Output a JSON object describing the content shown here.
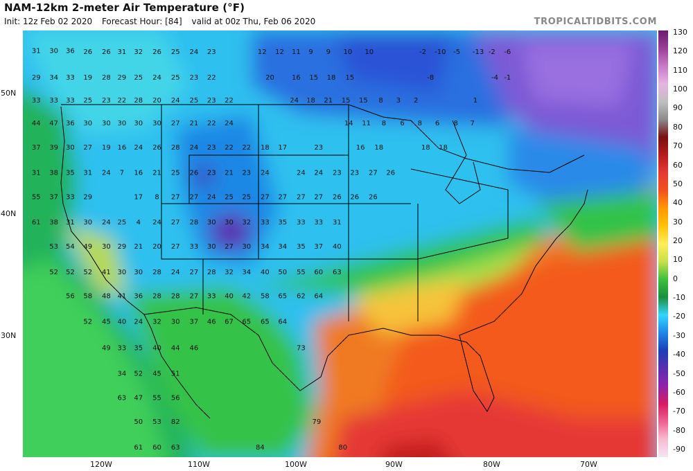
{
  "header": {
    "title": "NAM-12km 2-meter Air Temperature (°F)",
    "init": "Init: 12z Feb 02 2020",
    "forecast": "Forecast Hour: [84]",
    "valid": "valid at 00z Thu, Feb 06 2020",
    "brand": "TROPICALTIDBITS.COM"
  },
  "axes": {
    "lat_labels": [
      "50N",
      "40N",
      "30N"
    ],
    "lon_labels": [
      "120W",
      "110W",
      "100W",
      "90W",
      "80W",
      "70W"
    ]
  },
  "colorbar": {
    "ticks": [
      "130",
      "120",
      "110",
      "100",
      "90",
      "80",
      "70",
      "60",
      "50",
      "40",
      "30",
      "20",
      "10",
      "0",
      "-10",
      "-20",
      "-30",
      "-40",
      "-50",
      "-60",
      "-70",
      "-80",
      "-90"
    ],
    "colors": [
      "#6a1b6e",
      "#9b3f9a",
      "#c77ac6",
      "#e6b3e2",
      "#bfbfbf",
      "#8c8c8c",
      "#7a1010",
      "#b71c1c",
      "#e53935",
      "#f4511e",
      "#ff9800",
      "#ffc107",
      "#ffee58",
      "#c6e04a",
      "#3fbf3f",
      "#1b8f3a",
      "#33d6ff",
      "#1e88e5",
      "#1a3fb5",
      "#5c2db0",
      "#8e24aa",
      "#d81b60",
      "#f06292",
      "#f8bbd0",
      "#f3e5f5"
    ]
  },
  "points": [
    {
      "v": "31",
      "lon": -126.6,
      "lat": 53.7
    },
    {
      "v": "30",
      "lon": -124.8,
      "lat": 53.7
    },
    {
      "v": "36",
      "lon": -123.1,
      "lat": 53.7
    },
    {
      "v": "26",
      "lon": -121.3,
      "lat": 53.6
    },
    {
      "v": "26",
      "lon": -119.4,
      "lat": 53.6
    },
    {
      "v": "31",
      "lon": -117.8,
      "lat": 53.6
    },
    {
      "v": "32",
      "lon": -116.1,
      "lat": 53.6
    },
    {
      "v": "26",
      "lon": -114.2,
      "lat": 53.6
    },
    {
      "v": "25",
      "lon": -112.3,
      "lat": 53.6
    },
    {
      "v": "24",
      "lon": -110.4,
      "lat": 53.6
    },
    {
      "v": "23",
      "lon": -108.6,
      "lat": 53.6
    },
    {
      "v": "12",
      "lon": -103.4,
      "lat": 53.6
    },
    {
      "v": "12",
      "lon": -101.6,
      "lat": 53.6
    },
    {
      "v": "11",
      "lon": -99.9,
      "lat": 53.6
    },
    {
      "v": "9",
      "lon": -98.4,
      "lat": 53.6
    },
    {
      "v": "9",
      "lon": -96.6,
      "lat": 53.6
    },
    {
      "v": "10",
      "lon": -94.6,
      "lat": 53.6
    },
    {
      "v": "10",
      "lon": -92.4,
      "lat": 53.6
    },
    {
      "v": "-2",
      "lon": -86.9,
      "lat": 53.6
    },
    {
      "v": "-10",
      "lon": -85.1,
      "lat": 53.6
    },
    {
      "v": "-5",
      "lon": -83.4,
      "lat": 53.6
    },
    {
      "v": "-13",
      "lon": -81.2,
      "lat": 53.6
    },
    {
      "v": "-2",
      "lon": -79.8,
      "lat": 53.6
    },
    {
      "v": "-6",
      "lon": -78.2,
      "lat": 53.6
    },
    {
      "v": "29",
      "lon": -126.6,
      "lat": 51.5
    },
    {
      "v": "34",
      "lon": -124.8,
      "lat": 51.5
    },
    {
      "v": "33",
      "lon": -123.1,
      "lat": 51.5
    },
    {
      "v": "19",
      "lon": -121.3,
      "lat": 51.5
    },
    {
      "v": "28",
      "lon": -119.4,
      "lat": 51.5
    },
    {
      "v": "29",
      "lon": -117.8,
      "lat": 51.5
    },
    {
      "v": "25",
      "lon": -116.1,
      "lat": 51.5
    },
    {
      "v": "24",
      "lon": -114.2,
      "lat": 51.5
    },
    {
      "v": "25",
      "lon": -112.3,
      "lat": 51.5
    },
    {
      "v": "23",
      "lon": -110.4,
      "lat": 51.5
    },
    {
      "v": "22",
      "lon": -108.6,
      "lat": 51.5
    },
    {
      "v": "20",
      "lon": -102.6,
      "lat": 51.5
    },
    {
      "v": "16",
      "lon": -99.9,
      "lat": 51.5
    },
    {
      "v": "15",
      "lon": -98.1,
      "lat": 51.5
    },
    {
      "v": "18",
      "lon": -96.3,
      "lat": 51.5
    },
    {
      "v": "15",
      "lon": -94.4,
      "lat": 51.5
    },
    {
      "v": "-8",
      "lon": -86.1,
      "lat": 51.5
    },
    {
      "v": "-1",
      "lon": -78.2,
      "lat": 51.5
    },
    {
      "v": "-4",
      "lon": -79.5,
      "lat": 51.5
    },
    {
      "v": "33",
      "lon": -126.6,
      "lat": 49.6
    },
    {
      "v": "33",
      "lon": -124.8,
      "lat": 49.6
    },
    {
      "v": "33",
      "lon": -123.1,
      "lat": 49.6
    },
    {
      "v": "25",
      "lon": -121.3,
      "lat": 49.6
    },
    {
      "v": "23",
      "lon": -119.4,
      "lat": 49.6
    },
    {
      "v": "22",
      "lon": -117.8,
      "lat": 49.6
    },
    {
      "v": "28",
      "lon": -116.1,
      "lat": 49.6
    },
    {
      "v": "20",
      "lon": -114.2,
      "lat": 49.6
    },
    {
      "v": "24",
      "lon": -112.3,
      "lat": 49.6
    },
    {
      "v": "25",
      "lon": -110.4,
      "lat": 49.6
    },
    {
      "v": "23",
      "lon": -108.6,
      "lat": 49.6
    },
    {
      "v": "22",
      "lon": -106.8,
      "lat": 49.6
    },
    {
      "v": "24",
      "lon": -100.1,
      "lat": 49.6
    },
    {
      "v": "18",
      "lon": -98.4,
      "lat": 49.6
    },
    {
      "v": "21",
      "lon": -96.6,
      "lat": 49.6
    },
    {
      "v": "15",
      "lon": -94.8,
      "lat": 49.6
    },
    {
      "v": "15",
      "lon": -93.0,
      "lat": 49.6
    },
    {
      "v": "8",
      "lon": -91.2,
      "lat": 49.6
    },
    {
      "v": "3",
      "lon": -89.4,
      "lat": 49.6
    },
    {
      "v": "2",
      "lon": -87.6,
      "lat": 49.6
    },
    {
      "v": "1",
      "lon": -81.5,
      "lat": 49.6
    },
    {
      "v": "44",
      "lon": -126.6,
      "lat": 47.7
    },
    {
      "v": "47",
      "lon": -124.8,
      "lat": 47.7
    },
    {
      "v": "36",
      "lon": -123.1,
      "lat": 47.7
    },
    {
      "v": "30",
      "lon": -121.3,
      "lat": 47.7
    },
    {
      "v": "30",
      "lon": -119.4,
      "lat": 47.7
    },
    {
      "v": "30",
      "lon": -117.8,
      "lat": 47.7
    },
    {
      "v": "30",
      "lon": -116.1,
      "lat": 47.7
    },
    {
      "v": "30",
      "lon": -114.2,
      "lat": 47.7
    },
    {
      "v": "27",
      "lon": -112.3,
      "lat": 47.7
    },
    {
      "v": "21",
      "lon": -110.4,
      "lat": 47.7
    },
    {
      "v": "22",
      "lon": -108.6,
      "lat": 47.7
    },
    {
      "v": "24",
      "lon": -106.8,
      "lat": 47.7
    },
    {
      "v": "14",
      "lon": -94.5,
      "lat": 47.7
    },
    {
      "v": "11",
      "lon": -92.7,
      "lat": 47.7
    },
    {
      "v": "8",
      "lon": -90.9,
      "lat": 47.7
    },
    {
      "v": "6",
      "lon": -89.0,
      "lat": 47.7
    },
    {
      "v": "8",
      "lon": -87.2,
      "lat": 47.7
    },
    {
      "v": "6",
      "lon": -85.4,
      "lat": 47.7
    },
    {
      "v": "8",
      "lon": -83.5,
      "lat": 47.7
    },
    {
      "v": "7",
      "lon": -81.8,
      "lat": 47.7
    },
    {
      "v": "37",
      "lon": -126.6,
      "lat": 45.7
    },
    {
      "v": "39",
      "lon": -124.8,
      "lat": 45.7
    },
    {
      "v": "30",
      "lon": -123.1,
      "lat": 45.7
    },
    {
      "v": "27",
      "lon": -121.3,
      "lat": 45.7
    },
    {
      "v": "19",
      "lon": -119.4,
      "lat": 45.7
    },
    {
      "v": "16",
      "lon": -117.8,
      "lat": 45.7
    },
    {
      "v": "24",
      "lon": -116.1,
      "lat": 45.7
    },
    {
      "v": "26",
      "lon": -114.2,
      "lat": 45.7
    },
    {
      "v": "28",
      "lon": -112.3,
      "lat": 45.7
    },
    {
      "v": "24",
      "lon": -110.4,
      "lat": 45.7
    },
    {
      "v": "23",
      "lon": -108.6,
      "lat": 45.7
    },
    {
      "v": "22",
      "lon": -106.8,
      "lat": 45.7
    },
    {
      "v": "22",
      "lon": -105.0,
      "lat": 45.7
    },
    {
      "v": "18",
      "lon": -103.1,
      "lat": 45.7
    },
    {
      "v": "17",
      "lon": -101.3,
      "lat": 45.7
    },
    {
      "v": "23",
      "lon": -97.6,
      "lat": 45.7
    },
    {
      "v": "16",
      "lon": -93.3,
      "lat": 45.7
    },
    {
      "v": "18",
      "lon": -91.4,
      "lat": 45.7
    },
    {
      "v": "18",
      "lon": -86.6,
      "lat": 45.7
    },
    {
      "v": "18",
      "lon": -84.8,
      "lat": 45.7
    },
    {
      "v": "31",
      "lon": -126.6,
      "lat": 43.6
    },
    {
      "v": "38",
      "lon": -124.8,
      "lat": 43.6
    },
    {
      "v": "35",
      "lon": -123.1,
      "lat": 43.6
    },
    {
      "v": "31",
      "lon": -121.3,
      "lat": 43.6
    },
    {
      "v": "24",
      "lon": -119.4,
      "lat": 43.6
    },
    {
      "v": "7",
      "lon": -117.8,
      "lat": 43.6
    },
    {
      "v": "16",
      "lon": -116.1,
      "lat": 43.6
    },
    {
      "v": "21",
      "lon": -114.2,
      "lat": 43.6
    },
    {
      "v": "25",
      "lon": -112.3,
      "lat": 43.6
    },
    {
      "v": "26",
      "lon": -110.4,
      "lat": 43.6
    },
    {
      "v": "23",
      "lon": -108.6,
      "lat": 43.6
    },
    {
      "v": "21",
      "lon": -106.8,
      "lat": 43.6
    },
    {
      "v": "23",
      "lon": -105.0,
      "lat": 43.6
    },
    {
      "v": "24",
      "lon": -103.1,
      "lat": 43.6
    },
    {
      "v": "24",
      "lon": -99.4,
      "lat": 43.6
    },
    {
      "v": "24",
      "lon": -97.6,
      "lat": 43.6
    },
    {
      "v": "23",
      "lon": -95.7,
      "lat": 43.6
    },
    {
      "v": "23",
      "lon": -93.9,
      "lat": 43.6
    },
    {
      "v": "27",
      "lon": -92.0,
      "lat": 43.6
    },
    {
      "v": "26",
      "lon": -90.2,
      "lat": 43.6
    },
    {
      "v": "55",
      "lon": -126.6,
      "lat": 41.6
    },
    {
      "v": "37",
      "lon": -124.8,
      "lat": 41.6
    },
    {
      "v": "33",
      "lon": -123.1,
      "lat": 41.6
    },
    {
      "v": "29",
      "lon": -121.3,
      "lat": 41.6
    },
    {
      "v": "17",
      "lon": -116.1,
      "lat": 41.6
    },
    {
      "v": "8",
      "lon": -114.2,
      "lat": 41.6
    },
    {
      "v": "27",
      "lon": -112.3,
      "lat": 41.6
    },
    {
      "v": "27",
      "lon": -110.4,
      "lat": 41.6
    },
    {
      "v": "24",
      "lon": -108.6,
      "lat": 41.6
    },
    {
      "v": "25",
      "lon": -106.8,
      "lat": 41.6
    },
    {
      "v": "25",
      "lon": -105.0,
      "lat": 41.6
    },
    {
      "v": "27",
      "lon": -103.1,
      "lat": 41.6
    },
    {
      "v": "27",
      "lon": -101.3,
      "lat": 41.6
    },
    {
      "v": "27",
      "lon": -99.4,
      "lat": 41.6
    },
    {
      "v": "27",
      "lon": -97.6,
      "lat": 41.6
    },
    {
      "v": "26",
      "lon": -95.7,
      "lat": 41.6
    },
    {
      "v": "26",
      "lon": -93.9,
      "lat": 41.6
    },
    {
      "v": "26",
      "lon": -92.0,
      "lat": 41.6
    },
    {
      "v": "61",
      "lon": -126.6,
      "lat": 39.5
    },
    {
      "v": "38",
      "lon": -124.8,
      "lat": 39.5
    },
    {
      "v": "31",
      "lon": -123.1,
      "lat": 39.5
    },
    {
      "v": "30",
      "lon": -121.3,
      "lat": 39.5
    },
    {
      "v": "24",
      "lon": -119.4,
      "lat": 39.5
    },
    {
      "v": "25",
      "lon": -117.8,
      "lat": 39.5
    },
    {
      "v": "4",
      "lon": -116.1,
      "lat": 39.5
    },
    {
      "v": "24",
      "lon": -114.2,
      "lat": 39.5
    },
    {
      "v": "27",
      "lon": -112.3,
      "lat": 39.5
    },
    {
      "v": "28",
      "lon": -110.4,
      "lat": 39.5
    },
    {
      "v": "30",
      "lon": -108.6,
      "lat": 39.5
    },
    {
      "v": "30",
      "lon": -106.8,
      "lat": 39.5
    },
    {
      "v": "32",
      "lon": -105.0,
      "lat": 39.5
    },
    {
      "v": "33",
      "lon": -103.1,
      "lat": 39.5
    },
    {
      "v": "35",
      "lon": -101.3,
      "lat": 39.5
    },
    {
      "v": "33",
      "lon": -99.4,
      "lat": 39.5
    },
    {
      "v": "33",
      "lon": -97.6,
      "lat": 39.5
    },
    {
      "v": "31",
      "lon": -95.7,
      "lat": 39.5
    },
    {
      "v": "53",
      "lon": -124.8,
      "lat": 37.5
    },
    {
      "v": "54",
      "lon": -123.1,
      "lat": 37.5
    },
    {
      "v": "49",
      "lon": -121.3,
      "lat": 37.5
    },
    {
      "v": "30",
      "lon": -119.4,
      "lat": 37.5
    },
    {
      "v": "29",
      "lon": -117.8,
      "lat": 37.5
    },
    {
      "v": "21",
      "lon": -116.1,
      "lat": 37.5
    },
    {
      "v": "20",
      "lon": -114.2,
      "lat": 37.5
    },
    {
      "v": "27",
      "lon": -112.3,
      "lat": 37.5
    },
    {
      "v": "33",
      "lon": -110.4,
      "lat": 37.5
    },
    {
      "v": "30",
      "lon": -108.6,
      "lat": 37.5
    },
    {
      "v": "27",
      "lon": -106.8,
      "lat": 37.5
    },
    {
      "v": "30",
      "lon": -105.0,
      "lat": 37.5
    },
    {
      "v": "34",
      "lon": -103.1,
      "lat": 37.5
    },
    {
      "v": "34",
      "lon": -101.3,
      "lat": 37.5
    },
    {
      "v": "35",
      "lon": -99.4,
      "lat": 37.5
    },
    {
      "v": "37",
      "lon": -97.6,
      "lat": 37.5
    },
    {
      "v": "40",
      "lon": -95.7,
      "lat": 37.5
    },
    {
      "v": "52",
      "lon": -124.8,
      "lat": 35.4
    },
    {
      "v": "52",
      "lon": -123.1,
      "lat": 35.4
    },
    {
      "v": "52",
      "lon": -121.3,
      "lat": 35.4
    },
    {
      "v": "41",
      "lon": -119.4,
      "lat": 35.4
    },
    {
      "v": "30",
      "lon": -117.8,
      "lat": 35.4
    },
    {
      "v": "30",
      "lon": -116.1,
      "lat": 35.4
    },
    {
      "v": "28",
      "lon": -114.2,
      "lat": 35.4
    },
    {
      "v": "24",
      "lon": -112.3,
      "lat": 35.4
    },
    {
      "v": "27",
      "lon": -110.4,
      "lat": 35.4
    },
    {
      "v": "28",
      "lon": -108.6,
      "lat": 35.4
    },
    {
      "v": "32",
      "lon": -106.8,
      "lat": 35.4
    },
    {
      "v": "34",
      "lon": -105.0,
      "lat": 35.4
    },
    {
      "v": "40",
      "lon": -103.1,
      "lat": 35.4
    },
    {
      "v": "50",
      "lon": -101.3,
      "lat": 35.4
    },
    {
      "v": "55",
      "lon": -99.4,
      "lat": 35.4
    },
    {
      "v": "60",
      "lon": -97.6,
      "lat": 35.4
    },
    {
      "v": "63",
      "lon": -95.7,
      "lat": 35.4
    },
    {
      "v": "56",
      "lon": -123.1,
      "lat": 33.4
    },
    {
      "v": "58",
      "lon": -121.3,
      "lat": 33.4
    },
    {
      "v": "48",
      "lon": -119.4,
      "lat": 33.4
    },
    {
      "v": "41",
      "lon": -117.8,
      "lat": 33.4
    },
    {
      "v": "36",
      "lon": -116.1,
      "lat": 33.4
    },
    {
      "v": "28",
      "lon": -114.2,
      "lat": 33.4
    },
    {
      "v": "28",
      "lon": -112.3,
      "lat": 33.4
    },
    {
      "v": "27",
      "lon": -110.4,
      "lat": 33.4
    },
    {
      "v": "33",
      "lon": -108.6,
      "lat": 33.4
    },
    {
      "v": "40",
      "lon": -106.8,
      "lat": 33.4
    },
    {
      "v": "42",
      "lon": -105.0,
      "lat": 33.4
    },
    {
      "v": "58",
      "lon": -103.1,
      "lat": 33.4
    },
    {
      "v": "65",
      "lon": -101.3,
      "lat": 33.4
    },
    {
      "v": "62",
      "lon": -99.4,
      "lat": 33.4
    },
    {
      "v": "64",
      "lon": -97.6,
      "lat": 33.4
    },
    {
      "v": "52",
      "lon": -121.3,
      "lat": 31.3
    },
    {
      "v": "45",
      "lon": -119.4,
      "lat": 31.3
    },
    {
      "v": "40",
      "lon": -117.8,
      "lat": 31.3
    },
    {
      "v": "24",
      "lon": -116.1,
      "lat": 31.3
    },
    {
      "v": "32",
      "lon": -114.2,
      "lat": 31.3
    },
    {
      "v": "30",
      "lon": -112.3,
      "lat": 31.3
    },
    {
      "v": "37",
      "lon": -110.4,
      "lat": 31.3
    },
    {
      "v": "46",
      "lon": -108.6,
      "lat": 31.3
    },
    {
      "v": "67",
      "lon": -106.8,
      "lat": 31.3
    },
    {
      "v": "65",
      "lon": -105.0,
      "lat": 31.3
    },
    {
      "v": "65",
      "lon": -103.1,
      "lat": 31.3
    },
    {
      "v": "64",
      "lon": -101.3,
      "lat": 31.3
    },
    {
      "v": "49",
      "lon": -119.4,
      "lat": 29.1
    },
    {
      "v": "33",
      "lon": -117.8,
      "lat": 29.1
    },
    {
      "v": "35",
      "lon": -116.1,
      "lat": 29.1
    },
    {
      "v": "40",
      "lon": -114.2,
      "lat": 29.1
    },
    {
      "v": "44",
      "lon": -112.3,
      "lat": 29.1
    },
    {
      "v": "46",
      "lon": -110.4,
      "lat": 29.1
    },
    {
      "v": "73",
      "lon": -99.4,
      "lat": 29.1
    },
    {
      "v": "34",
      "lon": -117.8,
      "lat": 27.0
    },
    {
      "v": "52",
      "lon": -116.1,
      "lat": 27.0
    },
    {
      "v": "45",
      "lon": -114.2,
      "lat": 27.0
    },
    {
      "v": "51",
      "lon": -112.3,
      "lat": 27.0
    },
    {
      "v": "63",
      "lon": -117.8,
      "lat": 25.0
    },
    {
      "v": "47",
      "lon": -116.1,
      "lat": 25.0
    },
    {
      "v": "55",
      "lon": -114.2,
      "lat": 25.0
    },
    {
      "v": "56",
      "lon": -112.3,
      "lat": 25.0
    },
    {
      "v": "50",
      "lon": -116.1,
      "lat": 23.0
    },
    {
      "v": "53",
      "lon": -114.2,
      "lat": 23.0
    },
    {
      "v": "82",
      "lon": -112.3,
      "lat": 23.0
    },
    {
      "v": "79",
      "lon": -97.8,
      "lat": 23.0
    },
    {
      "v": "61",
      "lon": -116.1,
      "lat": 20.9
    },
    {
      "v": "60",
      "lon": -114.2,
      "lat": 20.9
    },
    {
      "v": "63",
      "lon": -112.3,
      "lat": 20.9
    },
    {
      "v": "84",
      "lon": -103.6,
      "lat": 20.9
    },
    {
      "v": "80",
      "lon": -95.1,
      "lat": 20.9
    }
  ]
}
